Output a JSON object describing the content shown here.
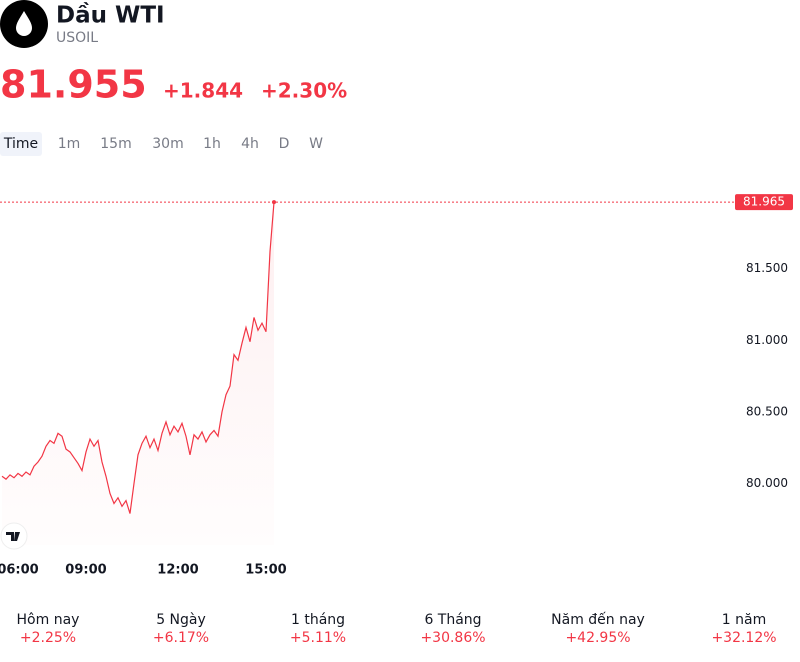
{
  "header": {
    "title": "Dầu WTI",
    "symbol": "USOIL",
    "price": "81.955",
    "change": "+1.844",
    "change_percent": "+2.30%"
  },
  "timeframes": [
    "Time",
    "1m",
    "15m",
    "30m",
    "1h",
    "4h",
    "D",
    "W"
  ],
  "chart_data": {
    "type": "line",
    "color": "#f23645",
    "categories": [
      null,
      null,
      null,
      null,
      "06:00",
      null,
      null,
      null,
      null,
      null,
      null,
      null,
      null,
      null,
      null,
      null,
      null,
      null,
      null,
      null,
      null,
      "09:00",
      null,
      null,
      null,
      null,
      null,
      null,
      null,
      null,
      null,
      null,
      null,
      null,
      null,
      null,
      null,
      null,
      null,
      null,
      null,
      null,
      null,
      null,
      "12:00",
      null,
      null,
      null,
      null,
      null,
      null,
      null,
      null,
      null,
      null,
      null,
      null,
      null,
      null,
      null,
      null,
      null,
      null,
      null,
      null,
      null,
      "15:00",
      null,
      null
    ],
    "values": [
      80.05,
      80.03,
      80.06,
      80.04,
      80.07,
      80.05,
      80.08,
      80.06,
      80.12,
      80.15,
      80.19,
      80.26,
      80.3,
      80.28,
      80.35,
      80.33,
      80.24,
      80.22,
      80.18,
      80.14,
      80.09,
      80.22,
      80.31,
      80.26,
      80.3,
      80.15,
      80.05,
      79.93,
      79.86,
      79.9,
      79.84,
      79.88,
      79.79,
      80.0,
      80.2,
      80.28,
      80.33,
      80.25,
      80.31,
      80.23,
      80.35,
      80.43,
      80.34,
      80.4,
      80.36,
      80.42,
      80.33,
      80.2,
      80.34,
      80.31,
      80.36,
      80.29,
      80.34,
      80.37,
      80.33,
      80.5,
      80.62,
      80.68,
      80.9,
      80.86,
      80.98,
      81.09,
      80.99,
      81.16,
      81.07,
      81.12,
      81.06,
      81.62,
      81.965
    ],
    "ylim": [
      79.57,
      82.12
    ],
    "yticks": [
      {
        "value": 80,
        "label": "80.000"
      },
      {
        "value": 80.5,
        "label": "80.500"
      },
      {
        "value": 81,
        "label": "81.000"
      },
      {
        "value": 81.5,
        "label": "81.500"
      }
    ]
  },
  "performance": [
    {
      "label": "Hôm nay",
      "value": "+2.25%"
    },
    {
      "label": "5 Ngày",
      "value": "+6.17%"
    },
    {
      "label": "1 tháng",
      "value": "+5.11%"
    },
    {
      "label": "6 Tháng",
      "value": "+30.86%"
    },
    {
      "label": "Năm đến nay",
      "value": "+42.95%"
    },
    {
      "label": "1 năm",
      "value": "+32.12%"
    }
  ]
}
